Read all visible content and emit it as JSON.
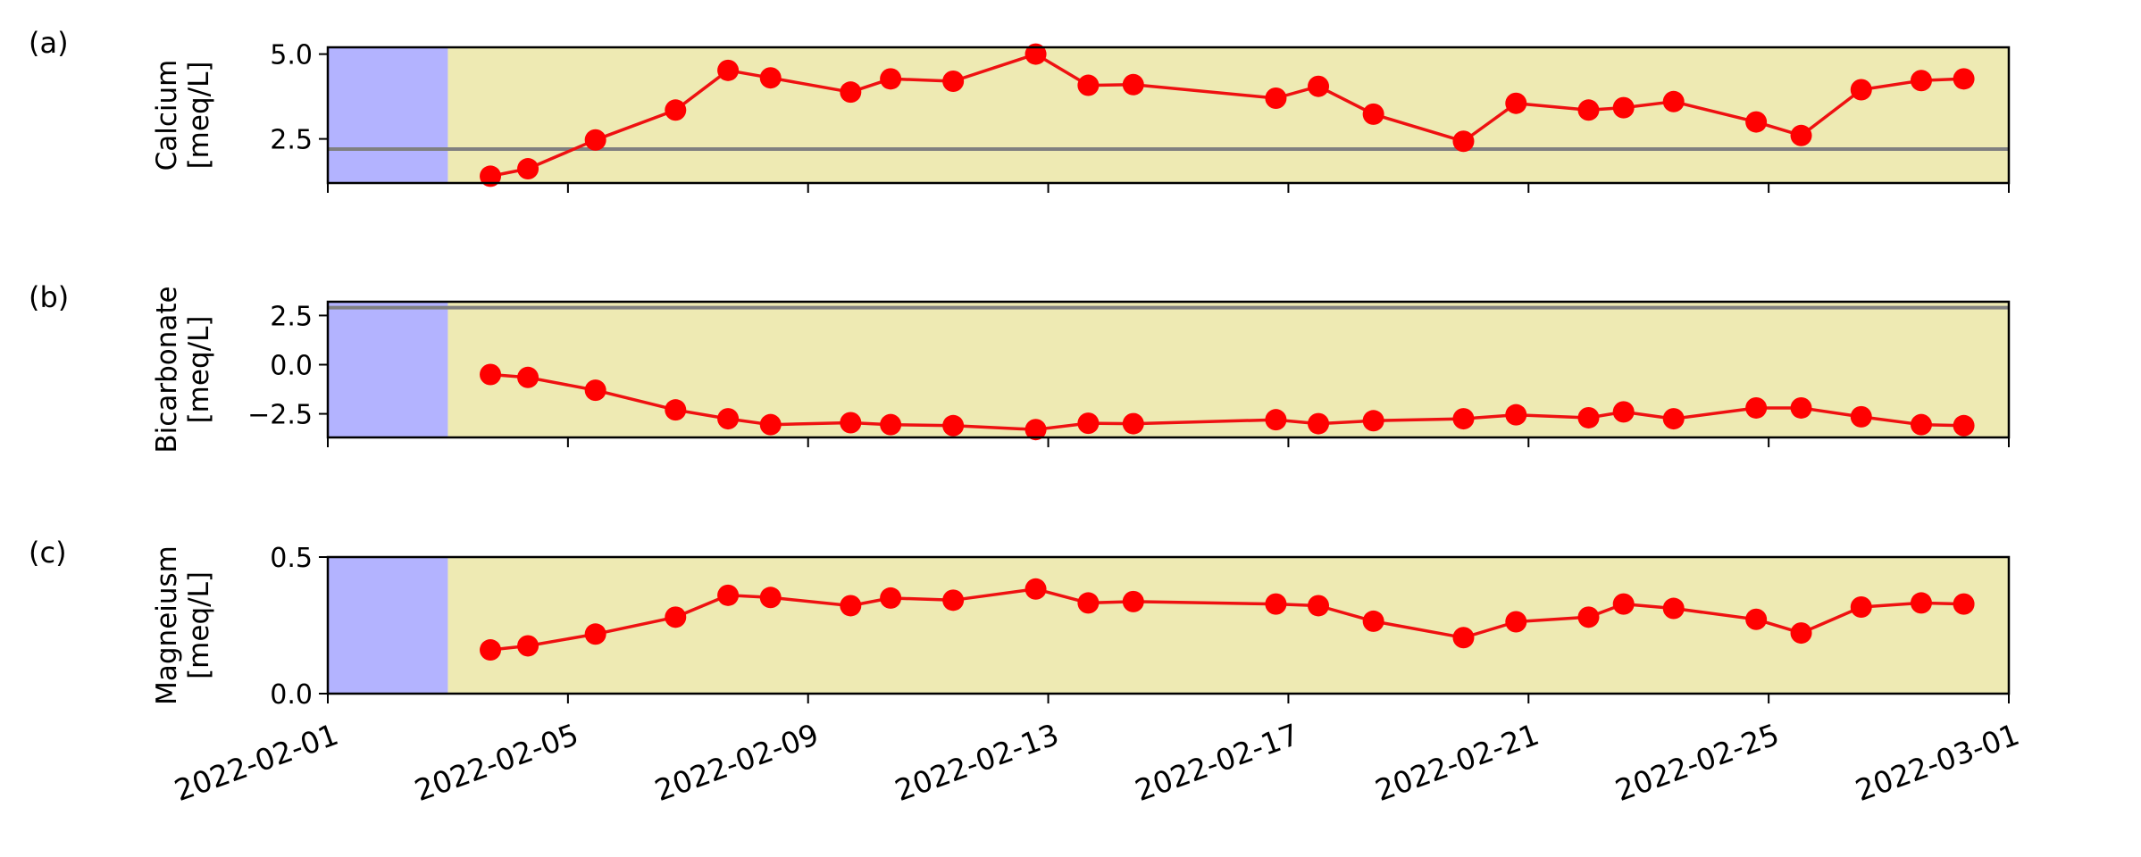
{
  "chart_data": {
    "type": "line",
    "x_axis": {
      "min": "2022-02-01",
      "max": "2022-03-01",
      "tick_labels": [
        "2022-02-01",
        "2022-02-05",
        "2022-02-09",
        "2022-02-13",
        "2022-02-17",
        "2022-02-21",
        "2022-02-25",
        "2022-03-01"
      ]
    },
    "shaded_spans": [
      {
        "start": "2022-02-01",
        "end": "2022-02-03",
        "color": "#b3b3ff"
      },
      {
        "start": "2022-02-03",
        "end": "2022-03-01",
        "color": "#eeeab3"
      }
    ],
    "series_style": {
      "line_color": "#ee1111",
      "marker_color": "#ff0000",
      "marker": "circle"
    },
    "reference_line_color": "#808080",
    "x": [
      "2022-02-03T17:00",
      "2022-02-04T08:00",
      "2022-02-05T11:00",
      "2022-02-06T19:00",
      "2022-02-07T16:00",
      "2022-02-08T09:00",
      "2022-02-09T17:00",
      "2022-02-10T09:00",
      "2022-02-11T10:00",
      "2022-02-12T19:00",
      "2022-02-13T16:00",
      "2022-02-14T10:00",
      "2022-02-16T19:00",
      "2022-02-17T12:00",
      "2022-02-18T10:00",
      "2022-02-19T22:00",
      "2022-02-20T19:00",
      "2022-02-22T00:00",
      "2022-02-22T14:00",
      "2022-02-23T10:00",
      "2022-02-24T19:00",
      "2022-02-25T13:00",
      "2022-02-26T13:00",
      "2022-02-27T13:00",
      "2022-02-28T06:00"
    ],
    "panels": [
      {
        "label": "(a)",
        "ylabel_lines": [
          "Calcium",
          "[meq/L]"
        ],
        "ylim": [
          1.2,
          5.2
        ],
        "yticks": [
          2.5,
          5.0
        ],
        "ytick_labels": [
          "2.5",
          "5.0"
        ],
        "hline": 2.2,
        "values": [
          1.4,
          1.62,
          2.47,
          3.35,
          4.52,
          4.3,
          3.88,
          4.27,
          4.2,
          5.0,
          4.08,
          4.1,
          3.7,
          4.05,
          3.23,
          2.43,
          3.55,
          3.35,
          3.42,
          3.6,
          3.0,
          2.6,
          3.95,
          4.22,
          4.27
        ]
      },
      {
        "label": "(b)",
        "ylabel_lines": [
          "Bicarbonate",
          "[meq/L]"
        ],
        "ylim": [
          -3.7,
          3.2
        ],
        "yticks": [
          -2.5,
          0.0,
          2.5
        ],
        "ytick_labels": [
          "−2.5",
          "0.0",
          "2.5"
        ],
        "hline": 2.9,
        "values": [
          -0.5,
          -0.65,
          -1.3,
          -2.3,
          -2.75,
          -3.05,
          -2.95,
          -3.05,
          -3.1,
          -3.3,
          -2.98,
          -3.0,
          -2.8,
          -3.0,
          -2.85,
          -2.75,
          -2.55,
          -2.7,
          -2.4,
          -2.75,
          -2.2,
          -2.2,
          -2.65,
          -3.05,
          -3.1
        ]
      },
      {
        "label": "(c)",
        "ylabel_lines": [
          "Magneiusm",
          "[meq/L]"
        ],
        "ylim": [
          0.0,
          0.5
        ],
        "yticks": [
          0.0,
          0.5
        ],
        "ytick_labels": [
          "0.0",
          "0.5"
        ],
        "hline": null,
        "values": [
          0.16,
          0.175,
          0.218,
          0.28,
          0.36,
          0.352,
          0.322,
          0.35,
          0.342,
          0.383,
          0.332,
          0.337,
          0.328,
          0.322,
          0.265,
          0.205,
          0.263,
          0.28,
          0.328,
          0.312,
          0.272,
          0.222,
          0.317,
          0.332,
          0.328
        ]
      }
    ]
  }
}
